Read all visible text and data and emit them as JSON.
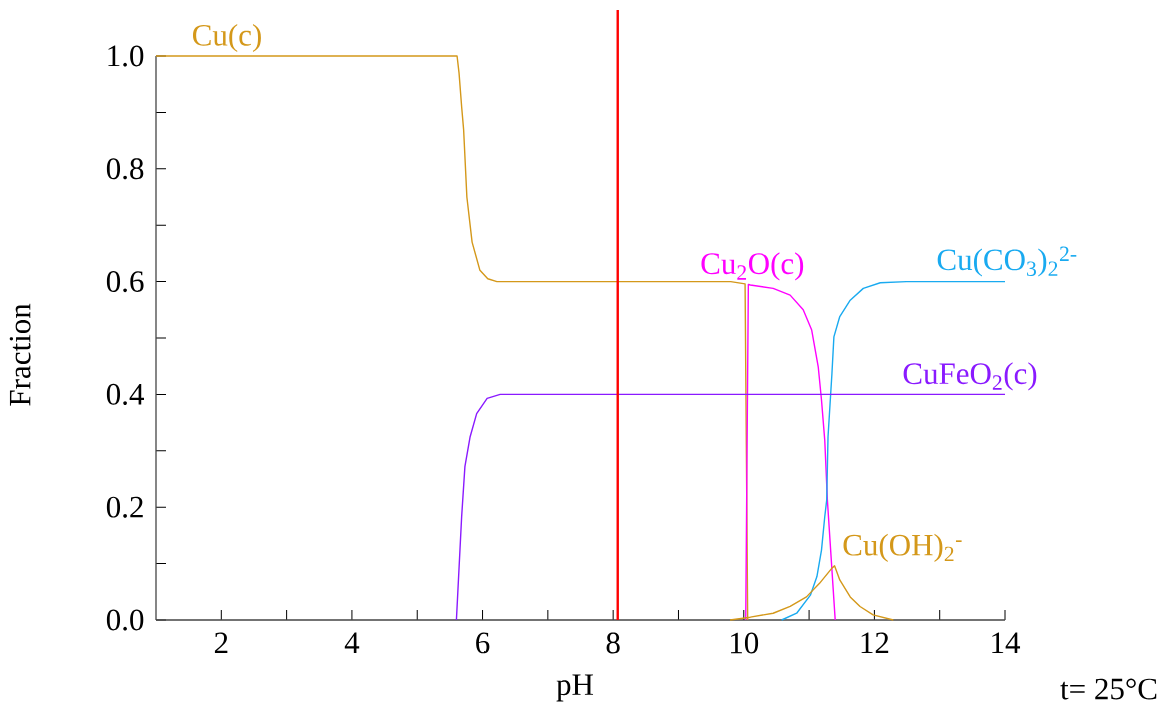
{
  "chart_data": {
    "type": "line",
    "xlabel": "pH",
    "ylabel": "Fraction",
    "annotations": [
      "t= 25°C"
    ],
    "xlim": [
      1,
      14
    ],
    "ylim": [
      0,
      1
    ],
    "xticks": [
      2,
      {
        "value": 3,
        "label": null
      },
      4,
      {
        "value": 5,
        "label": null
      },
      6,
      {
        "value": 7,
        "label": null
      },
      8,
      {
        "value": 9,
        "label": null
      },
      10,
      {
        "value": 11,
        "label": null
      },
      12,
      {
        "value": 13,
        "label": null
      },
      14
    ],
    "yticks": [
      {
        "value": 0,
        "label": "0.0"
      },
      {
        "value": 0.1,
        "label": null
      },
      {
        "value": 0.2,
        "label": "0.2"
      },
      {
        "value": 0.3,
        "label": null
      },
      {
        "value": 0.4,
        "label": "0.4"
      },
      {
        "value": 0.5,
        "label": null
      },
      {
        "value": 0.6,
        "label": "0.6"
      },
      {
        "value": 0.7,
        "label": null
      },
      {
        "value": 0.8,
        "label": "0.8"
      },
      {
        "value": 0.9,
        "label": null
      },
      {
        "value": 1,
        "label": "1.0"
      }
    ],
    "marker": "none",
    "line_style": "solid",
    "ref_lines": [
      {
        "axis": "x",
        "value": 8.07,
        "color": "#ff0000"
      }
    ],
    "series": [
      {
        "name": "Cu(c)",
        "color": "#d4981a",
        "x": [
          1,
          5.61,
          5.64,
          5.68,
          5.71,
          5.76,
          5.84,
          5.96,
          6.08,
          6.22,
          9.8,
          10.02,
          10.06
        ],
        "values": [
          1,
          1,
          0.97,
          0.91,
          0.87,
          0.75,
          0.67,
          0.62,
          0.605,
          0.6,
          0.6,
          0.596,
          0
        ]
      },
      {
        "name": "Cu$_{2}$O(c)",
        "color": "#ff00ff",
        "x": [
          10.03,
          10.07,
          10.1,
          10.45,
          10.71,
          10.91,
          11.04,
          11.14,
          11.19,
          11.24,
          11.28,
          11.4
        ],
        "values": [
          0,
          0.595,
          0.594,
          0.588,
          0.576,
          0.55,
          0.514,
          0.449,
          0.39,
          0.319,
          0.213,
          0
        ]
      },
      {
        "name": "Cu(CO$_{3}$)$_{2}$$^{2-}$",
        "color": "#19aaf0",
        "x": [
          10.58,
          10.81,
          11.02,
          11.12,
          11.19,
          11.24,
          11.27,
          11.29,
          11.35,
          11.38,
          11.47,
          11.63,
          11.83,
          12.09,
          12.49,
          14
        ],
        "values": [
          0,
          0.012,
          0.044,
          0.077,
          0.124,
          0.183,
          0.213,
          0.325,
          0.437,
          0.502,
          0.538,
          0.567,
          0.588,
          0.598,
          0.6,
          0.6
        ]
      },
      {
        "name": "CuFeO$_{2}$(c)",
        "color": "#8a1aff",
        "x": [
          5.6,
          5.68,
          5.73,
          5.81,
          5.91,
          6.07,
          6.27,
          14
        ],
        "values": [
          0,
          0.183,
          0.272,
          0.325,
          0.366,
          0.393,
          0.4,
          0.4
        ]
      },
      {
        "name": "Cu(OH)$_{2}$$^{-}$",
        "color": "#d4981a",
        "x": [
          9.79,
          10.1,
          10.45,
          10.71,
          10.96,
          11.16,
          11.35,
          11.39,
          11.47,
          11.63,
          11.78,
          11.98,
          12.29
        ],
        "values": [
          0,
          0.005,
          0.012,
          0.024,
          0.041,
          0.065,
          0.092,
          0.096,
          0.071,
          0.041,
          0.024,
          0.009,
          0
        ]
      }
    ]
  }
}
